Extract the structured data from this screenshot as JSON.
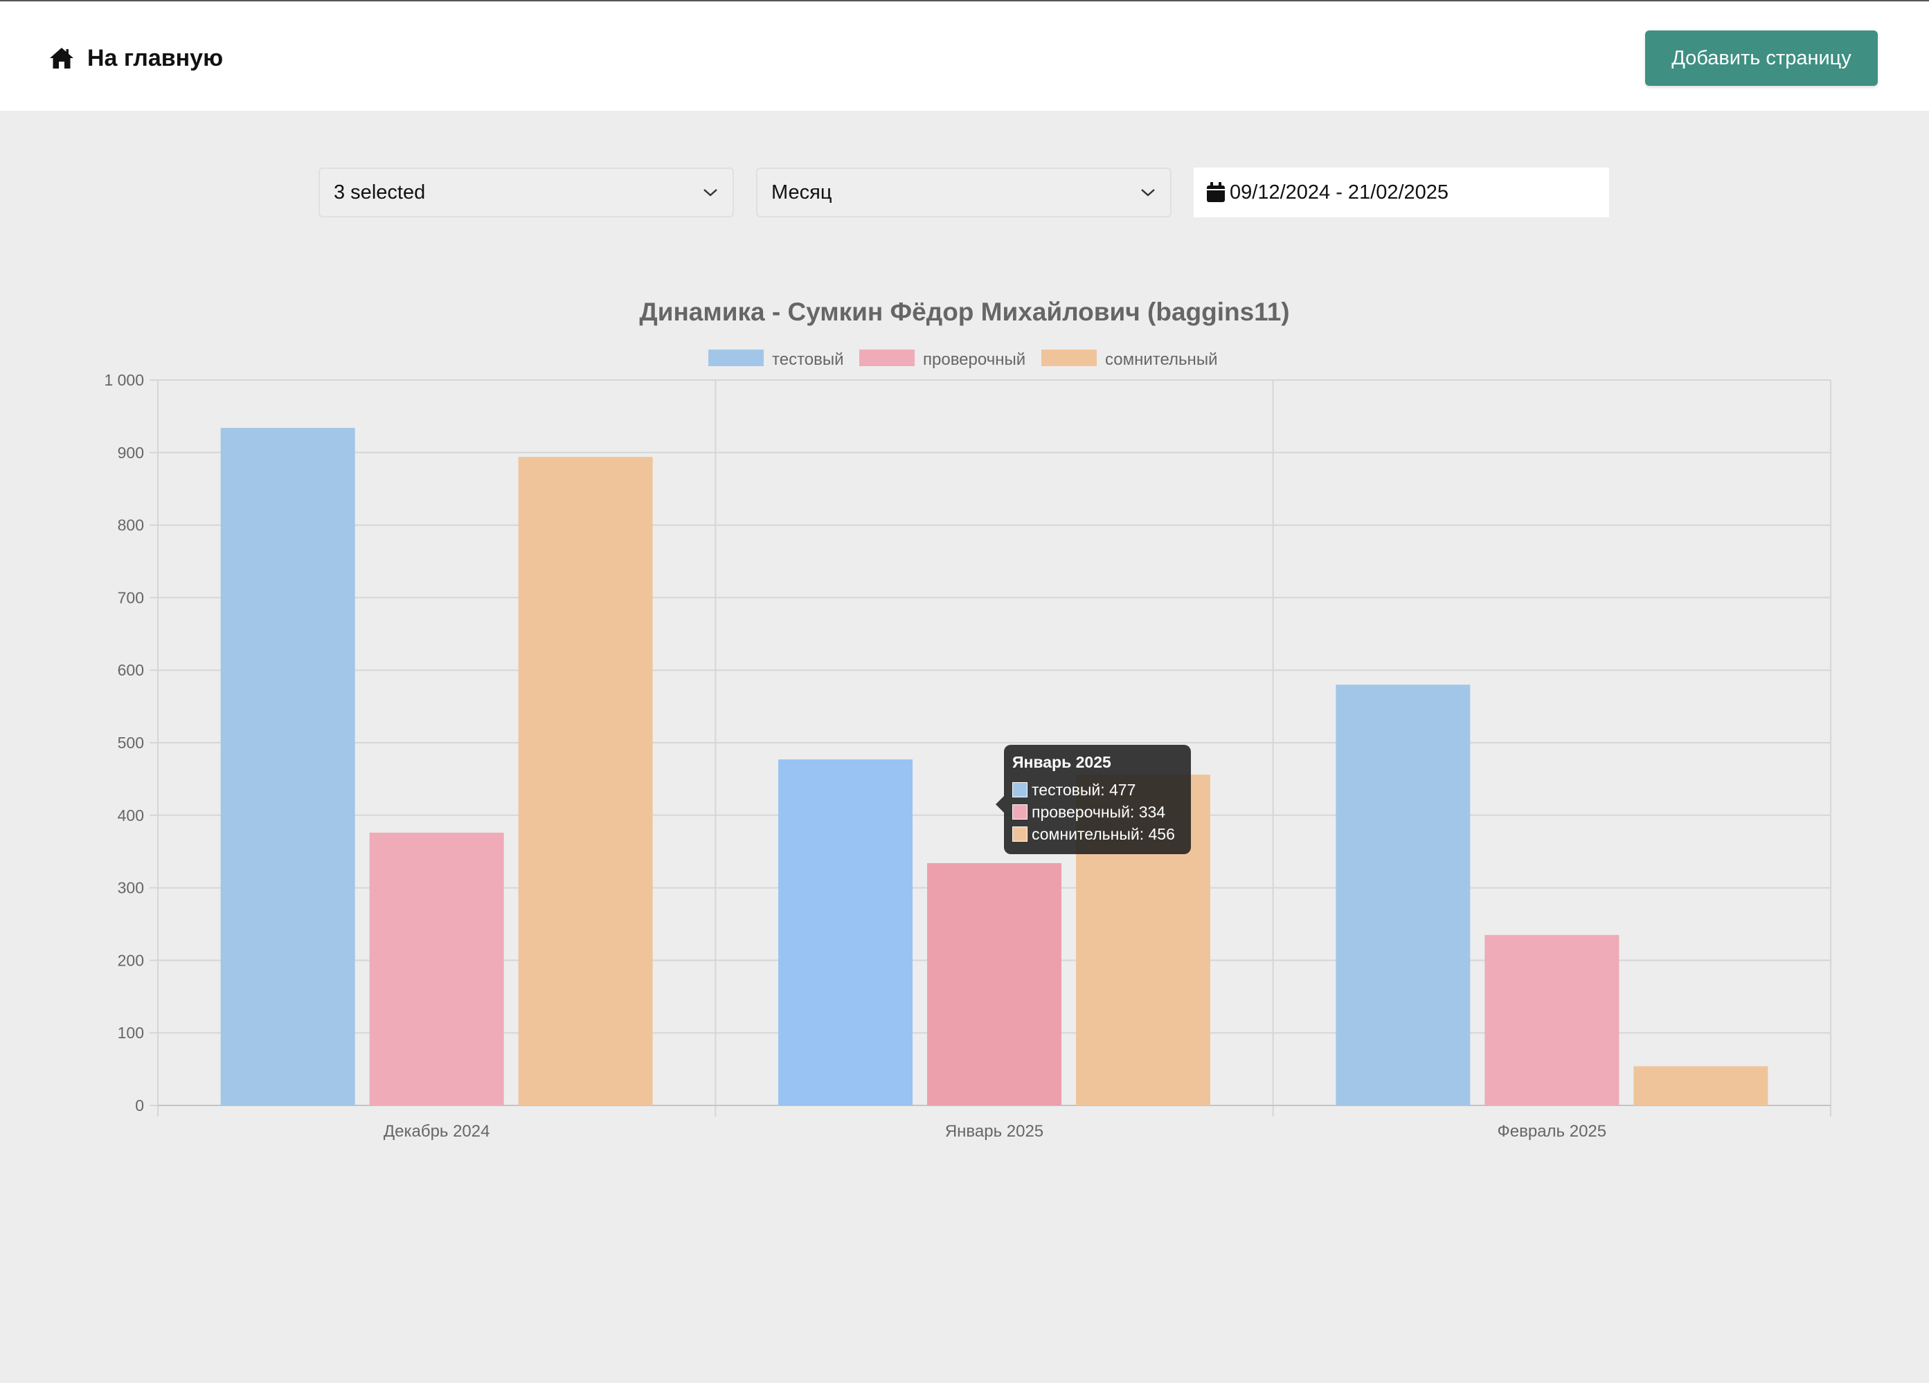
{
  "header": {
    "home_label": "На главную",
    "add_page_label": "Добавить страницу",
    "accent": "#3f8f82"
  },
  "filters": {
    "select_1": "3 selected",
    "select_2": "Месяц",
    "date_range": "09/12/2024 - 21/02/2025"
  },
  "chart_data": {
    "type": "bar",
    "title": "Динамика - Сумкин Фёдор Михайлович (baggins11)",
    "categories": [
      "Декабрь 2024",
      "Январь 2025",
      "Февраль 2025"
    ],
    "series": [
      {
        "name": "тестовый",
        "values": [
          934,
          477,
          580
        ],
        "color": "#a2c6e8"
      },
      {
        "name": "проверочный",
        "values": [
          376,
          334,
          235
        ],
        "color": "#efabb7"
      },
      {
        "name": "сомнительный",
        "values": [
          894,
          456,
          54
        ],
        "color": "#f0c49a"
      }
    ],
    "ylim": [
      0,
      1000
    ],
    "yticks": [
      0,
      100,
      200,
      300,
      400,
      500,
      600,
      700,
      800,
      900,
      1000
    ],
    "ytick_labels": [
      "0",
      "100",
      "200",
      "300",
      "400",
      "500",
      "600",
      "700",
      "800",
      "900",
      "1 000"
    ],
    "legend_position": "top",
    "grid": true,
    "highlighted_category": 1
  },
  "tooltip": {
    "title": "Январь 2025",
    "rows": [
      {
        "text": "тестовый: 477",
        "color": "#a2c6e8"
      },
      {
        "text": "проверочный: 334",
        "color": "#efabb7"
      },
      {
        "text": "сомнительный: 456",
        "color": "#f0c49a"
      }
    ]
  }
}
